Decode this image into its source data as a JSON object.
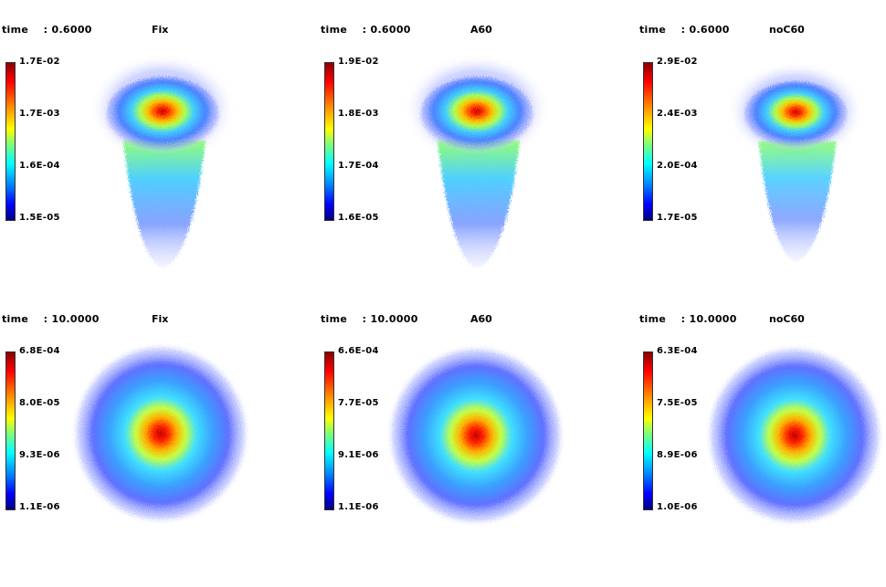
{
  "panels": [
    {
      "time_label": "time    : 0.6000",
      "case": "Fix",
      "ticks": [
        "1.7E-02",
        "1.7E-03",
        "1.6E-04",
        "1.5E-05"
      ]
    },
    {
      "time_label": "time    : 0.6000",
      "case": "A60",
      "ticks": [
        "1.9E-02",
        "1.8E-03",
        "1.7E-04",
        "1.6E-05"
      ]
    },
    {
      "time_label": "time    : 0.6000",
      "case": "noC60",
      "ticks": [
        "2.9E-02",
        "2.4E-03",
        "2.0E-04",
        "1.7E-05"
      ]
    },
    {
      "time_label": "time    : 10.0000",
      "case": "Fix",
      "ticks": [
        "6.8E-04",
        "8.0E-05",
        "9.3E-06",
        "1.1E-06"
      ]
    },
    {
      "time_label": "time    : 10.0000",
      "case": "A60",
      "ticks": [
        "6.6E-04",
        "7.7E-05",
        "9.1E-06",
        "1.1E-06"
      ]
    },
    {
      "time_label": "time    : 10.0000",
      "case": "noC60",
      "ticks": [
        "6.3E-04",
        "7.5E-05",
        "8.9E-06",
        "1.0E-06"
      ]
    }
  ]
}
